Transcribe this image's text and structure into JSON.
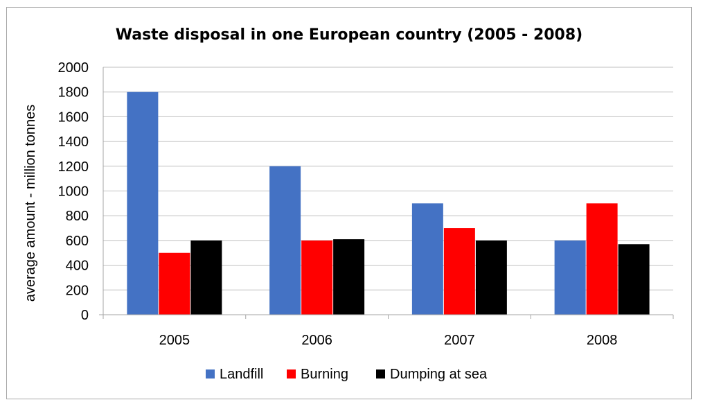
{
  "chart_data": {
    "type": "bar",
    "title": "Waste disposal in one European country (2005 - 2008)",
    "xlabel": "",
    "ylabel": "average amount - million tonnes",
    "categories": [
      "2005",
      "2006",
      "2007",
      "2008"
    ],
    "series": [
      {
        "name": "Landfill",
        "color": "#4472c4",
        "values": [
          1800,
          1200,
          900,
          600
        ]
      },
      {
        "name": "Burning",
        "color": "#ff0000",
        "values": [
          500,
          600,
          700,
          900
        ]
      },
      {
        "name": "Dumping at sea",
        "color": "#000000",
        "values": [
          600,
          610,
          600,
          570
        ]
      }
    ],
    "ylim": [
      0,
      2000
    ],
    "yticks": [
      "0",
      "200",
      "400",
      "600",
      "800",
      "1000",
      "1200",
      "1400",
      "1600",
      "1800",
      "2000"
    ],
    "grid": true,
    "legend_position": "bottom"
  }
}
